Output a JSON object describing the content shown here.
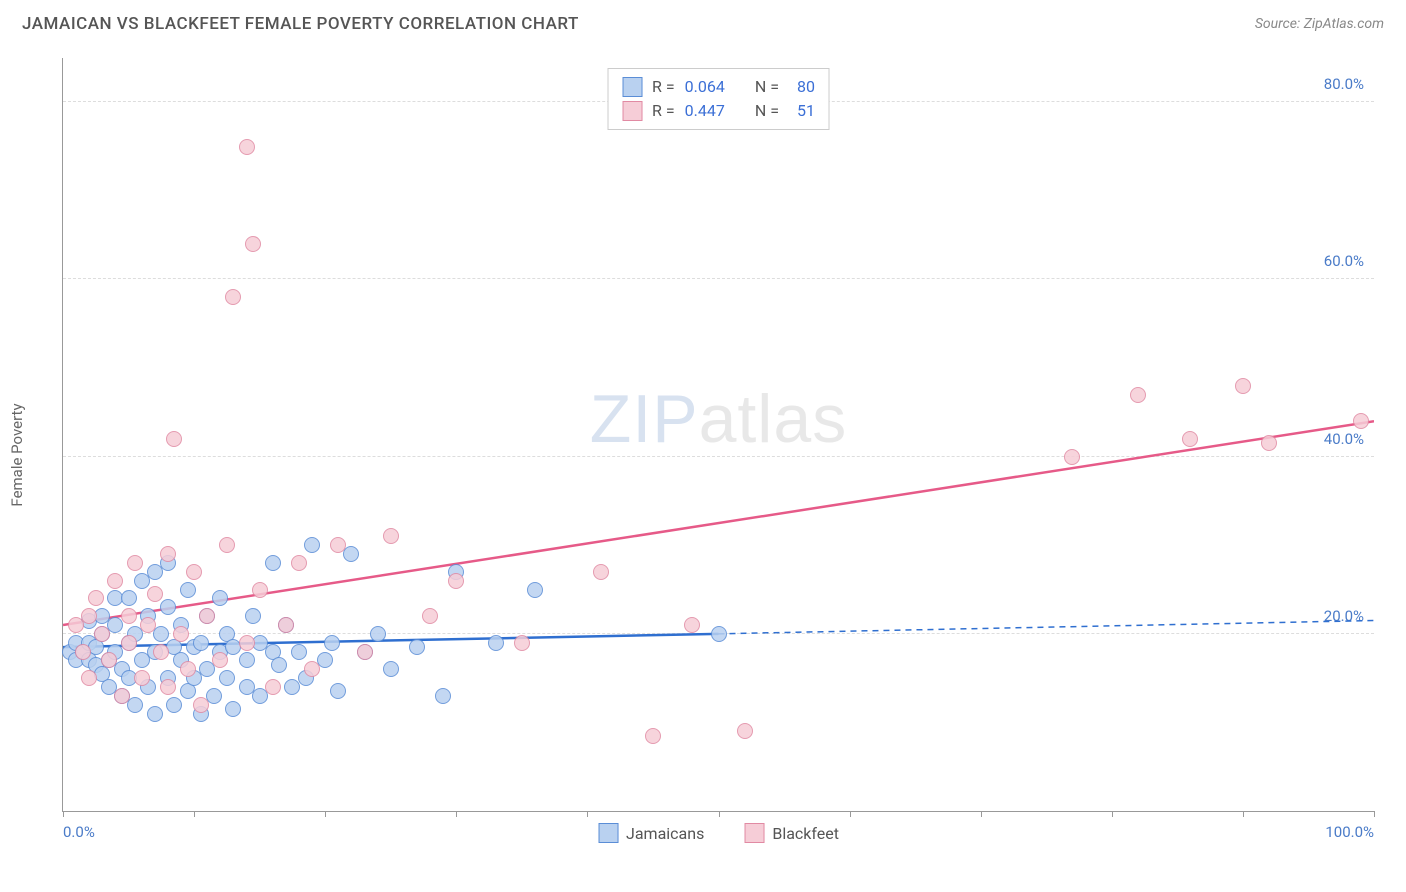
{
  "header": {
    "title": "JAMAICAN VS BLACKFEET FEMALE POVERTY CORRELATION CHART",
    "source": "Source: ZipAtlas.com"
  },
  "ylabel": "Female Poverty",
  "watermark": {
    "zip": "ZIP",
    "atlas": "atlas"
  },
  "chart": {
    "type": "scatter",
    "xlim": [
      0,
      100
    ],
    "ylim": [
      0,
      85
    ],
    "background_color": "#ffffff",
    "grid_color": "#dddddd",
    "axis_color": "#999999",
    "xtick_positions": [
      0,
      10,
      20,
      30,
      40,
      50,
      60,
      70,
      80,
      90,
      100
    ],
    "xtick_labels": {
      "0": "0.0%",
      "100": "100.0%"
    },
    "ytick_positions": [
      20,
      40,
      60,
      80
    ],
    "ytick_labels": [
      "20.0%",
      "40.0%",
      "60.0%",
      "80.0%"
    ],
    "tick_label_color": "#4a7bc8",
    "tick_fontsize": 15,
    "point_radius": 8,
    "series": [
      {
        "name": "Jamaicans",
        "point_fill": "#b9d1f0",
        "point_stroke": "#5a8dd6",
        "trend_color": "#2f6fd0",
        "trend_width": 2.5,
        "R": "0.064",
        "N": "80",
        "trend": {
          "x1": 0,
          "y1": 18.5,
          "x2": 50,
          "y2": 20.0,
          "x2_dash": 100,
          "y2_dash": 21.5
        },
        "points": [
          [
            0.5,
            18
          ],
          [
            1,
            17
          ],
          [
            1,
            19
          ],
          [
            1.5,
            18
          ],
          [
            2,
            17
          ],
          [
            2,
            19
          ],
          [
            2,
            21.5
          ],
          [
            2.5,
            16.5
          ],
          [
            2.5,
            18.5
          ],
          [
            3,
            15.5
          ],
          [
            3,
            20
          ],
          [
            3,
            22
          ],
          [
            3.5,
            17
          ],
          [
            3.5,
            14
          ],
          [
            4,
            18
          ],
          [
            4,
            21
          ],
          [
            4,
            24
          ],
          [
            4.5,
            16
          ],
          [
            4.5,
            13
          ],
          [
            5,
            19
          ],
          [
            5,
            15
          ],
          [
            5,
            24
          ],
          [
            5.5,
            12
          ],
          [
            5.5,
            20
          ],
          [
            6,
            17
          ],
          [
            6,
            26
          ],
          [
            6.5,
            22
          ],
          [
            6.5,
            14
          ],
          [
            7,
            18
          ],
          [
            7,
            27
          ],
          [
            7,
            11
          ],
          [
            7.5,
            20
          ],
          [
            8,
            15
          ],
          [
            8,
            23
          ],
          [
            8,
            28
          ],
          [
            8.5,
            12
          ],
          [
            8.5,
            18.5
          ],
          [
            9,
            17
          ],
          [
            9,
            21
          ],
          [
            9.5,
            25
          ],
          [
            9.5,
            13.5
          ],
          [
            10,
            18.5
          ],
          [
            10,
            15
          ],
          [
            10.5,
            19
          ],
          [
            10.5,
            11
          ],
          [
            11,
            22
          ],
          [
            11,
            16
          ],
          [
            11.5,
            13
          ],
          [
            12,
            18
          ],
          [
            12,
            24
          ],
          [
            12.5,
            20
          ],
          [
            12.5,
            15
          ],
          [
            13,
            11.5
          ],
          [
            13,
            18.5
          ],
          [
            14,
            17
          ],
          [
            14,
            14
          ],
          [
            14.5,
            22
          ],
          [
            15,
            19
          ],
          [
            15,
            13
          ],
          [
            16,
            18
          ],
          [
            16,
            28
          ],
          [
            16.5,
            16.5
          ],
          [
            17,
            21
          ],
          [
            17.5,
            14
          ],
          [
            18,
            18
          ],
          [
            18.5,
            15
          ],
          [
            19,
            30
          ],
          [
            20,
            17
          ],
          [
            20.5,
            19
          ],
          [
            21,
            13.5
          ],
          [
            22,
            29
          ],
          [
            23,
            18
          ],
          [
            24,
            20
          ],
          [
            25,
            16
          ],
          [
            27,
            18.5
          ],
          [
            29,
            13
          ],
          [
            30,
            27
          ],
          [
            33,
            19
          ],
          [
            36,
            25
          ],
          [
            50,
            20
          ]
        ]
      },
      {
        "name": "Blackfeet",
        "point_fill": "#f6cdd7",
        "point_stroke": "#e18aa3",
        "trend_color": "#e65a88",
        "trend_width": 2.5,
        "R": "0.447",
        "N": "51",
        "trend": {
          "x1": 0,
          "y1": 21,
          "x2": 100,
          "y2": 44
        },
        "points": [
          [
            1,
            21
          ],
          [
            1.5,
            18
          ],
          [
            2,
            22
          ],
          [
            2,
            15
          ],
          [
            2.5,
            24
          ],
          [
            3,
            20
          ],
          [
            3.5,
            17
          ],
          [
            4,
            26
          ],
          [
            4.5,
            13
          ],
          [
            5,
            22
          ],
          [
            5,
            19
          ],
          [
            5.5,
            28
          ],
          [
            6,
            15
          ],
          [
            6.5,
            21
          ],
          [
            7,
            24.5
          ],
          [
            7.5,
            18
          ],
          [
            8,
            29
          ],
          [
            8,
            14
          ],
          [
            8.5,
            42
          ],
          [
            9,
            20
          ],
          [
            9.5,
            16
          ],
          [
            10,
            27
          ],
          [
            10.5,
            12
          ],
          [
            11,
            22
          ],
          [
            12,
            17
          ],
          [
            12.5,
            30
          ],
          [
            13,
            58
          ],
          [
            14,
            19
          ],
          [
            14,
            75
          ],
          [
            14.5,
            64
          ],
          [
            15,
            25
          ],
          [
            16,
            14
          ],
          [
            17,
            21
          ],
          [
            18,
            28
          ],
          [
            19,
            16
          ],
          [
            21,
            30
          ],
          [
            23,
            18
          ],
          [
            25,
            31
          ],
          [
            28,
            22
          ],
          [
            30,
            26
          ],
          [
            35,
            19
          ],
          [
            41,
            27
          ],
          [
            45,
            8.5
          ],
          [
            48,
            21
          ],
          [
            52,
            9
          ],
          [
            77,
            40
          ],
          [
            82,
            47
          ],
          [
            86,
            42
          ],
          [
            90,
            48
          ],
          [
            92,
            41.5
          ],
          [
            99,
            44
          ]
        ]
      }
    ]
  },
  "legend_top": {
    "rows": [
      {
        "swatch_fill": "#b9d1f0",
        "swatch_stroke": "#5a8dd6",
        "r_label": "R =",
        "r_val": "0.064",
        "n_label": "N =",
        "n_val": "80"
      },
      {
        "swatch_fill": "#f6cdd7",
        "swatch_stroke": "#e18aa3",
        "r_label": "R =",
        "r_val": "0.447",
        "n_label": "N =",
        "n_val": "51"
      }
    ]
  },
  "legend_bottom": {
    "items": [
      {
        "swatch_fill": "#b9d1f0",
        "swatch_stroke": "#5a8dd6",
        "label": "Jamaicans"
      },
      {
        "swatch_fill": "#f6cdd7",
        "swatch_stroke": "#e18aa3",
        "label": "Blackfeet"
      }
    ]
  }
}
